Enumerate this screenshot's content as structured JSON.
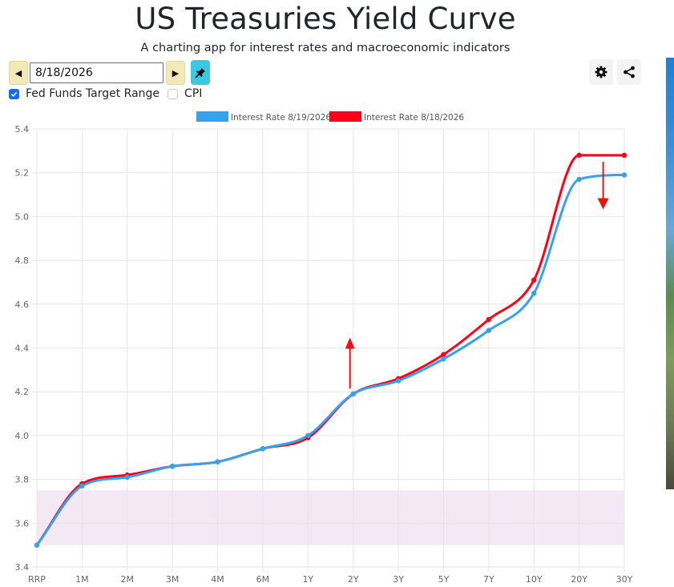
{
  "header": {
    "title": "US Treasuries Yield Curve",
    "subtitle": "A charting app for interest rates and macroeconomic indicators"
  },
  "controls": {
    "date_value": "8/18/2026",
    "prev_icon": "caret-left-icon",
    "next_icon": "caret-right-icon",
    "pin_icon": "pin-icon",
    "settings_icon": "gear-icon",
    "share_icon": "share-icon",
    "checkboxes": [
      {
        "label": "Fed Funds Target Range",
        "checked": true
      },
      {
        "label": "CPI",
        "checked": false
      }
    ]
  },
  "colors": {
    "series_new": "#36a2eb",
    "series_old": "#ff0018",
    "fed_band": "#f3e8f3",
    "annotation_arrow": "#ee1111"
  },
  "chart_data": {
    "type": "line",
    "categories": [
      "RRP",
      "1M",
      "2M",
      "3M",
      "4M",
      "6M",
      "1Y",
      "2Y",
      "3Y",
      "5Y",
      "7Y",
      "10Y",
      "20Y",
      "30Y"
    ],
    "series": [
      {
        "name": "Interest Rate 8/19/2026",
        "color": "#36a2eb",
        "values": [
          3.5,
          3.77,
          3.81,
          3.86,
          3.88,
          3.94,
          4.0,
          4.19,
          4.25,
          4.35,
          4.48,
          4.65,
          5.17,
          5.19
        ]
      },
      {
        "name": "Interest Rate 8/18/2026",
        "color": "#ff0018",
        "values": [
          3.5,
          3.78,
          3.82,
          3.86,
          3.88,
          3.94,
          3.99,
          4.19,
          4.26,
          4.37,
          4.53,
          4.71,
          5.28,
          5.28
        ]
      }
    ],
    "ylim": [
      3.4,
      5.4
    ],
    "yticks": [
      "3.4",
      "3.6",
      "3.8",
      "4.0",
      "4.2",
      "4.4",
      "4.6",
      "4.8",
      "5.0",
      "5.2",
      "5.4"
    ],
    "fed_funds_band": [
      3.5,
      3.75
    ],
    "annotations": [
      {
        "type": "arrow-up",
        "category": "2Y"
      },
      {
        "type": "arrow-down",
        "category": "20Y"
      }
    ],
    "grid": true,
    "legend": "top"
  }
}
